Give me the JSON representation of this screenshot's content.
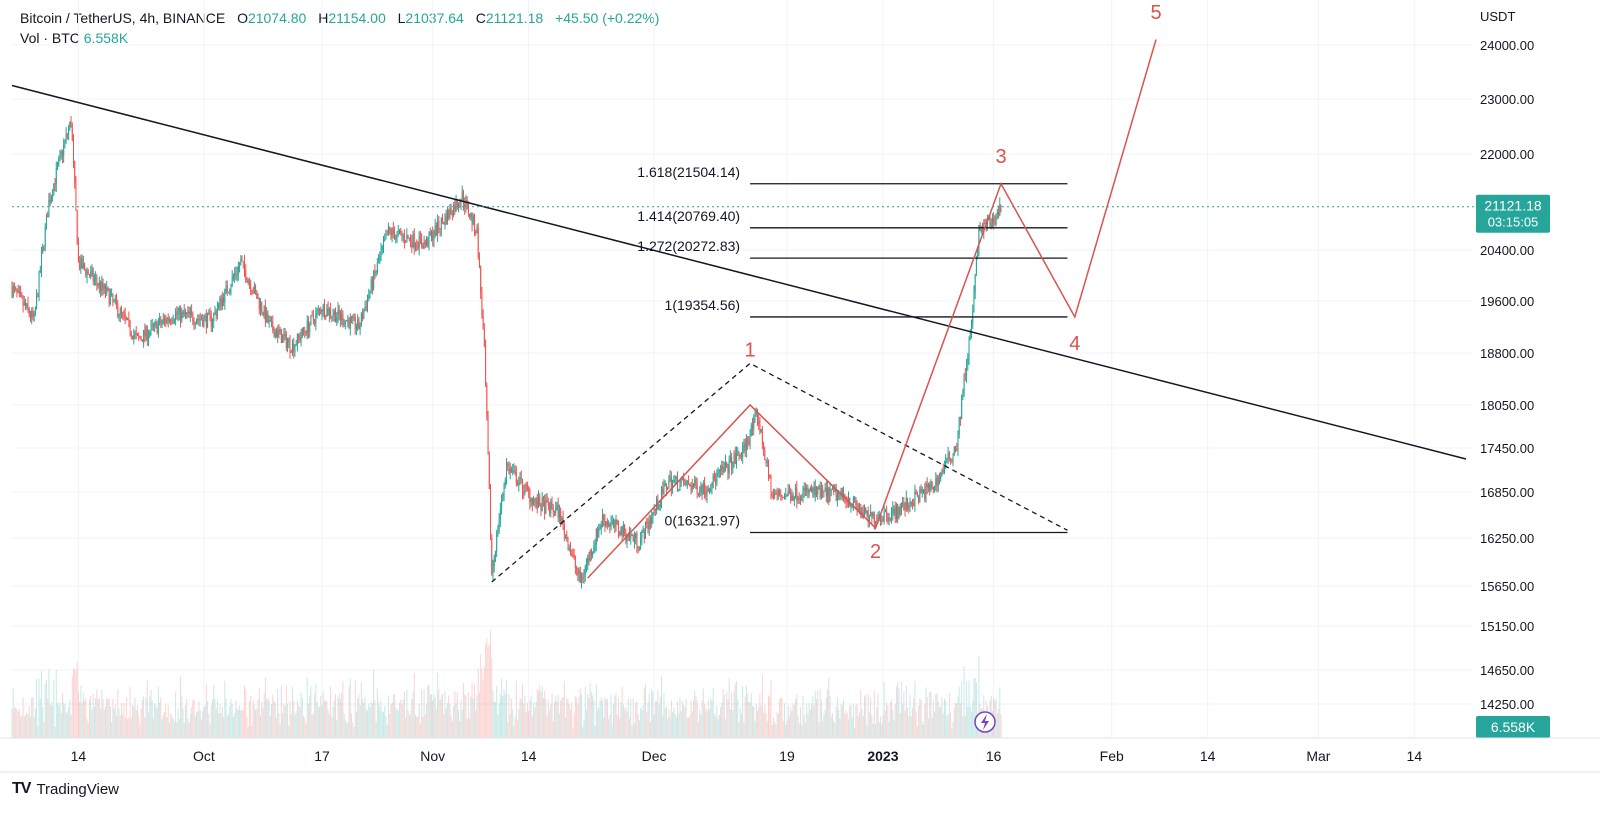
{
  "header": {
    "symbol": "Bitcoin / TetherUS, 4h, BINANCE",
    "open_label": "O",
    "open": "21074.80",
    "high_label": "H",
    "high": "21154.00",
    "low_label": "L",
    "low": "21037.64",
    "close_label": "C",
    "close": "21121.18",
    "change": "+45.50 (+0.22%)",
    "vol_label": "Vol · BTC",
    "vol_value": "6.558K"
  },
  "price_axis": {
    "unit": "USDT",
    "ticks": [
      "24000.00",
      "23000.00",
      "22000.00",
      "20400.00",
      "19600.00",
      "18800.00",
      "18050.00",
      "17450.00",
      "16850.00",
      "16250.00",
      "15650.00",
      "15150.00",
      "14650.00",
      "14250.00"
    ],
    "current_price": "21121.18",
    "countdown": "03:15:05",
    "volume_badge": "6.558K"
  },
  "time_axis": {
    "ticks": [
      "14",
      "Oct",
      "17",
      "Nov",
      "14",
      "Dec",
      "19",
      "2023",
      "16",
      "Feb",
      "14",
      "Mar",
      "14"
    ]
  },
  "colors": {
    "up": "#26a69a",
    "down": "#ef5350",
    "wave": "#d9534f",
    "fib": "#131722",
    "badge": "#26a69a",
    "accent": "#7e3fbf"
  },
  "chart_data": {
    "type": "candlestick",
    "title": "Bitcoin / TetherUS, 4h, BINANCE",
    "y_unit": "USDT",
    "ylim": [
      13900,
      24400
    ],
    "price_path": [
      [
        "2022-09-05",
        19800
      ],
      [
        "2022-09-08",
        19300
      ],
      [
        "2022-09-10",
        21200
      ],
      [
        "2022-09-13",
        22600
      ],
      [
        "2022-09-14",
        20200
      ],
      [
        "2022-09-18",
        19700
      ],
      [
        "2022-09-22",
        19000
      ],
      [
        "2022-09-27",
        19400
      ],
      [
        "2022-10-02",
        19300
      ],
      [
        "2022-10-06",
        20200
      ],
      [
        "2022-10-10",
        19200
      ],
      [
        "2022-10-13",
        18900
      ],
      [
        "2022-10-17",
        19500
      ],
      [
        "2022-10-22",
        19200
      ],
      [
        "2022-10-26",
        20700
      ],
      [
        "2022-10-31",
        20500
      ],
      [
        "2022-11-05",
        21300
      ],
      [
        "2022-11-07",
        20700
      ],
      [
        "2022-11-08",
        18800
      ],
      [
        "2022-11-09",
        15800
      ],
      [
        "2022-11-11",
        17200
      ],
      [
        "2022-11-15",
        16700
      ],
      [
        "2022-11-18",
        16600
      ],
      [
        "2022-11-21",
        15700
      ],
      [
        "2022-11-24",
        16500
      ],
      [
        "2022-11-29",
        16200
      ],
      [
        "2022-12-03",
        17000
      ],
      [
        "2022-12-08",
        16900
      ],
      [
        "2022-12-13",
        17400
      ],
      [
        "2022-12-15",
        17900
      ],
      [
        "2022-12-17",
        16800
      ],
      [
        "2022-12-22",
        16850
      ],
      [
        "2022-12-27",
        16800
      ],
      [
        "2022-12-30",
        16500
      ],
      [
        "2023-01-03",
        16600
      ],
      [
        "2023-01-08",
        16950
      ],
      [
        "2023-01-11",
        17500
      ],
      [
        "2023-01-12",
        18400
      ],
      [
        "2023-01-13",
        19200
      ],
      [
        "2023-01-14",
        20700
      ],
      [
        "2023-01-16",
        20900
      ],
      [
        "2023-01-17",
        21121
      ]
    ],
    "trendline": [
      [
        "2022-09-05",
        23250
      ],
      [
        "2023-03-21",
        17300
      ]
    ],
    "fib_levels": [
      {
        "label": "1.618(21504.14)",
        "value": 21504.14
      },
      {
        "label": "1.414(20769.40)",
        "value": 20769.4
      },
      {
        "label": "1.272(20272.83)",
        "value": 20272.83
      },
      {
        "label": "1(19354.56)",
        "value": 19354.56
      },
      {
        "label": "0(16321.97)",
        "value": 16321.97
      }
    ],
    "fib_range": [
      "2022-12-14",
      "2023-01-26"
    ],
    "dashed_triangle": [
      [
        "2022-11-09",
        15700
      ],
      [
        "2022-12-14",
        18650
      ],
      [
        "2023-01-26",
        16350
      ]
    ],
    "waves": {
      "points": [
        [
          "2022-11-22",
          15750
        ],
        [
          "2022-12-14",
          18050
        ],
        [
          "2022-12-31",
          16380
        ],
        [
          "2023-01-17",
          21504
        ],
        [
          "2023-01-27",
          19354
        ],
        [
          "2023-02-07",
          24100
        ]
      ],
      "labels": [
        {
          "text": "1",
          "at": [
            "2022-12-14",
            18750
          ]
        },
        {
          "text": "2",
          "at": [
            "2022-12-31",
            16000
          ]
        },
        {
          "text": "3",
          "at": [
            "2023-01-17",
            21850
          ]
        },
        {
          "text": "4",
          "at": [
            "2023-01-27",
            18850
          ]
        },
        {
          "text": "5",
          "at": [
            "2023-02-07",
            24480
          ]
        }
      ]
    },
    "volume_recent": "6.558K"
  },
  "brand": {
    "logo": "TV",
    "name": "TradingView"
  }
}
